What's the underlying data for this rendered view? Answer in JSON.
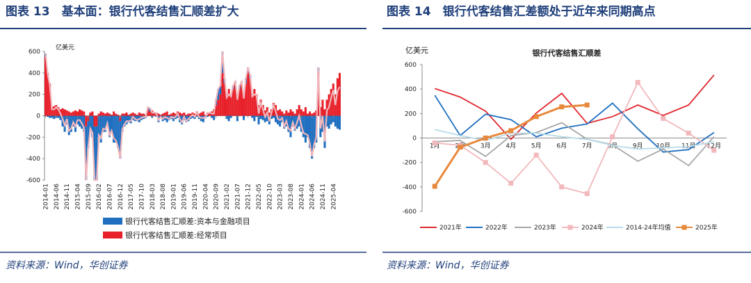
{
  "panels": [
    {
      "figure_title": "图表 13　基本面：银行代客结售汇顺差扩大",
      "source": "资料来源：Wind，华创证券",
      "chart_data": {
        "type": "bar",
        "stacked": true,
        "ylabel": "亿美元",
        "categories": [
          "2014-01",
          null,
          null,
          null,
          null,
          "2014-06",
          null,
          null,
          null,
          null,
          "2014-11",
          null,
          null,
          null,
          null,
          "2015-04",
          null,
          null,
          null,
          null,
          "2015-09",
          null,
          null,
          null,
          null,
          "2016-02",
          null,
          null,
          null,
          null,
          "2016-07",
          null,
          null,
          null,
          null,
          "2016-12",
          null,
          null,
          null,
          null,
          "2017-05",
          null,
          null,
          null,
          null,
          "2017-10",
          null,
          null,
          null,
          null,
          "2018-03",
          null,
          null,
          null,
          null,
          "2018-08",
          null,
          null,
          null,
          null,
          "2019-01",
          null,
          null,
          null,
          null,
          "2019-06",
          null,
          null,
          null,
          null,
          "2019-11",
          null,
          null,
          null,
          null,
          "2020-04",
          null,
          null,
          null,
          null,
          "2020-09",
          null,
          null,
          null,
          null,
          "2021-02",
          null,
          null,
          null,
          null,
          "2021-07",
          null,
          null,
          null,
          null,
          "2021-12",
          null,
          null,
          null,
          null,
          "2022-05",
          null,
          null,
          null,
          null,
          "2022-10",
          null,
          null,
          null,
          null,
          "2023-03",
          null,
          null,
          null,
          null,
          "2023-08",
          null,
          null,
          null,
          null,
          "2024-01",
          null,
          null,
          null,
          null,
          "2024-06",
          null,
          null,
          null,
          null,
          "2024-11",
          null,
          null,
          null,
          null,
          "2025-04",
          null,
          null,
          null
        ],
        "series": [
          {
            "name": "银行代客结售汇顺差:资本与金融项目",
            "color": "#1f6fc0",
            "values": [
              30,
              -10,
              -20,
              -20,
              -30,
              -20,
              -20,
              -40,
              -100,
              -150,
              -80,
              -180,
              -150,
              -100,
              -150,
              -80,
              -100,
              -120,
              -150,
              -500,
              -250,
              -150,
              -200,
              -500,
              -500,
              -200,
              -250,
              -150,
              -150,
              -100,
              -200,
              -150,
              -250,
              -250,
              -300,
              -350,
              -150,
              -100,
              -80,
              -60,
              -70,
              -40,
              -50,
              -50,
              -60,
              -40,
              -30,
              -20,
              20,
              30,
              -20,
              10,
              -10,
              -60,
              -20,
              -50,
              -40,
              -60,
              -40,
              -30,
              -50,
              -30,
              -20,
              -60,
              -80,
              -40,
              -60,
              -50,
              -30,
              -20,
              -30,
              -10,
              -30,
              -50,
              -60,
              -20,
              -10,
              0,
              -20,
              -40,
              50,
              100,
              80,
              200,
              50,
              -30,
              -50,
              -20,
              30,
              20,
              -50,
              30,
              20,
              -40,
              50,
              50,
              30,
              -20,
              -50,
              -10,
              -80,
              -30,
              -40,
              -60,
              -50,
              -80,
              -30,
              -20,
              -60,
              -80,
              -100,
              -60,
              -120,
              -100,
              -150,
              -200,
              -100,
              -140,
              -120,
              -100,
              -150,
              -200,
              -250,
              -200,
              -300,
              -400,
              -300,
              -250,
              50,
              -200,
              -150,
              -300,
              -100,
              -120,
              -80,
              -60,
              -100,
              -120,
              -130
            ]
          },
          {
            "name": "银行代客结售汇顺差:经常项目",
            "color": "#e8202a",
            "values": [
              550,
              400,
              300,
              80,
              90,
              100,
              80,
              60,
              70,
              60,
              50,
              40,
              30,
              40,
              50,
              40,
              60,
              50,
              40,
              -100,
              -50,
              30,
              40,
              -100,
              -100,
              20,
              40,
              30,
              20,
              30,
              20,
              10,
              40,
              20,
              10,
              -50,
              20,
              20,
              30,
              10,
              20,
              30,
              20,
              10,
              30,
              20,
              20,
              10,
              60,
              40,
              50,
              20,
              30,
              20,
              10,
              20,
              30,
              40,
              10,
              20,
              30,
              20,
              40,
              30,
              20,
              30,
              10,
              20,
              20,
              30,
              20,
              40,
              20,
              30,
              40,
              10,
              30,
              30,
              40,
              60,
              100,
              150,
              200,
              400,
              300,
              200,
              250,
              200,
              250,
              300,
              200,
              250,
              300,
              200,
              300,
              400,
              350,
              200,
              250,
              200,
              100,
              150,
              100,
              50,
              80,
              30,
              60,
              120,
              100,
              50,
              60,
              40,
              20,
              50,
              30,
              60,
              40,
              20,
              60,
              100,
              60,
              40,
              80,
              20,
              40,
              20,
              30,
              50,
              400,
              80,
              150,
              60,
              150,
              200,
              250,
              300,
              200,
              350,
              400
            ]
          }
        ],
        "total_line_color": "#f1b6bb",
        "ylim": [
          -600,
          600
        ],
        "yticks": [
          -600,
          -400,
          -200,
          0,
          200,
          400,
          600
        ]
      }
    },
    {
      "figure_title": "图表 14　银行代客结售汇差额处于近年来同期高点",
      "source": "资料来源：Wind，华创证券",
      "chart_data": {
        "type": "line",
        "title": "银行代客结售汇顺差",
        "ylabel": "亿美元",
        "categories": [
          "1月",
          "2月",
          "3月",
          "4月",
          "5月",
          "6月",
          "7月",
          "8月",
          "9月",
          "10月",
          "11月",
          "12月"
        ],
        "series": [
          {
            "name": "2021年",
            "color": "#e0262e",
            "values": [
              405,
              335,
              220,
              -10,
              205,
              365,
              120,
              175,
              270,
              185,
              270,
              515
            ]
          },
          {
            "name": "2022年",
            "color": "#1f6fc0",
            "values": [
              350,
              20,
              195,
              150,
              10,
              80,
              115,
              285,
              75,
              -115,
              -95,
              45
            ]
          },
          {
            "name": "2023年",
            "color": "#a6a6a6",
            "values": [
              -30,
              -20,
              -150,
              20,
              45,
              125,
              -10,
              -55,
              -190,
              -90,
              -225,
              10
            ]
          },
          {
            "name": "2024年",
            "color": "#f2b8bc",
            "markers": true,
            "values": [
              -40,
              -60,
              -200,
              -370,
              -140,
              -400,
              -455,
              10,
              455,
              160,
              40,
              -100
            ]
          },
          {
            "name": "2014-24年均值",
            "color": "#b8dbe8",
            "values": [
              70,
              20,
              -20,
              40,
              40,
              10,
              -10,
              -60,
              -90,
              -80,
              -70,
              -30
            ]
          },
          {
            "name": "2025年",
            "color": "#e8883a",
            "markers": true,
            "values": [
              -395,
              -75,
              0,
              60,
              175,
              255,
              270,
              null,
              null,
              null,
              null,
              null
            ]
          }
        ],
        "ylim": [
          -600,
          600
        ],
        "yticks": [
          -600,
          -400,
          -200,
          0,
          200,
          400,
          600
        ]
      }
    }
  ]
}
